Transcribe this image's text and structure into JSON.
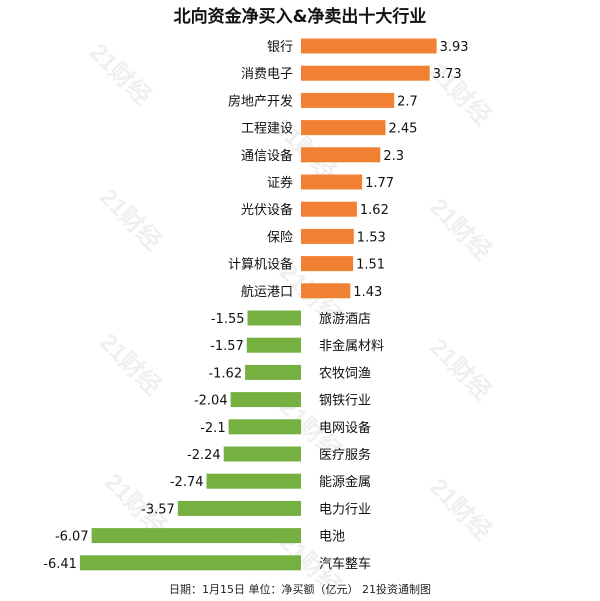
{
  "chart_data": {
    "type": "bar",
    "orientation": "horizontal",
    "title": "北向资金净买入&净卖出十大行业",
    "footer": "日期：1月15日 单位：净买额（亿元） 21投资通制图",
    "watermark": "21财经",
    "positive_color": "#f08032",
    "negative_color": "#76b041",
    "grid": false,
    "legend": "none",
    "xlim": [
      -6.41,
      3.93
    ],
    "categories": [
      "银行",
      "消费电子",
      "房地产开发",
      "工程建设",
      "通信设备",
      "证券",
      "光伏设备",
      "保险",
      "计算机设备",
      "航运港口",
      "旅游酒店",
      "非金属材料",
      "农牧饲渔",
      "钢铁行业",
      "电网设备",
      "医疗服务",
      "能源金属",
      "电力行业",
      "电池",
      "汽车整车"
    ],
    "values": [
      3.93,
      3.73,
      2.7,
      2.45,
      2.3,
      1.77,
      1.62,
      1.53,
      1.51,
      1.43,
      -1.55,
      -1.57,
      -1.62,
      -2.04,
      -2.1,
      -2.24,
      -2.74,
      -3.57,
      -6.07,
      -6.41
    ]
  }
}
